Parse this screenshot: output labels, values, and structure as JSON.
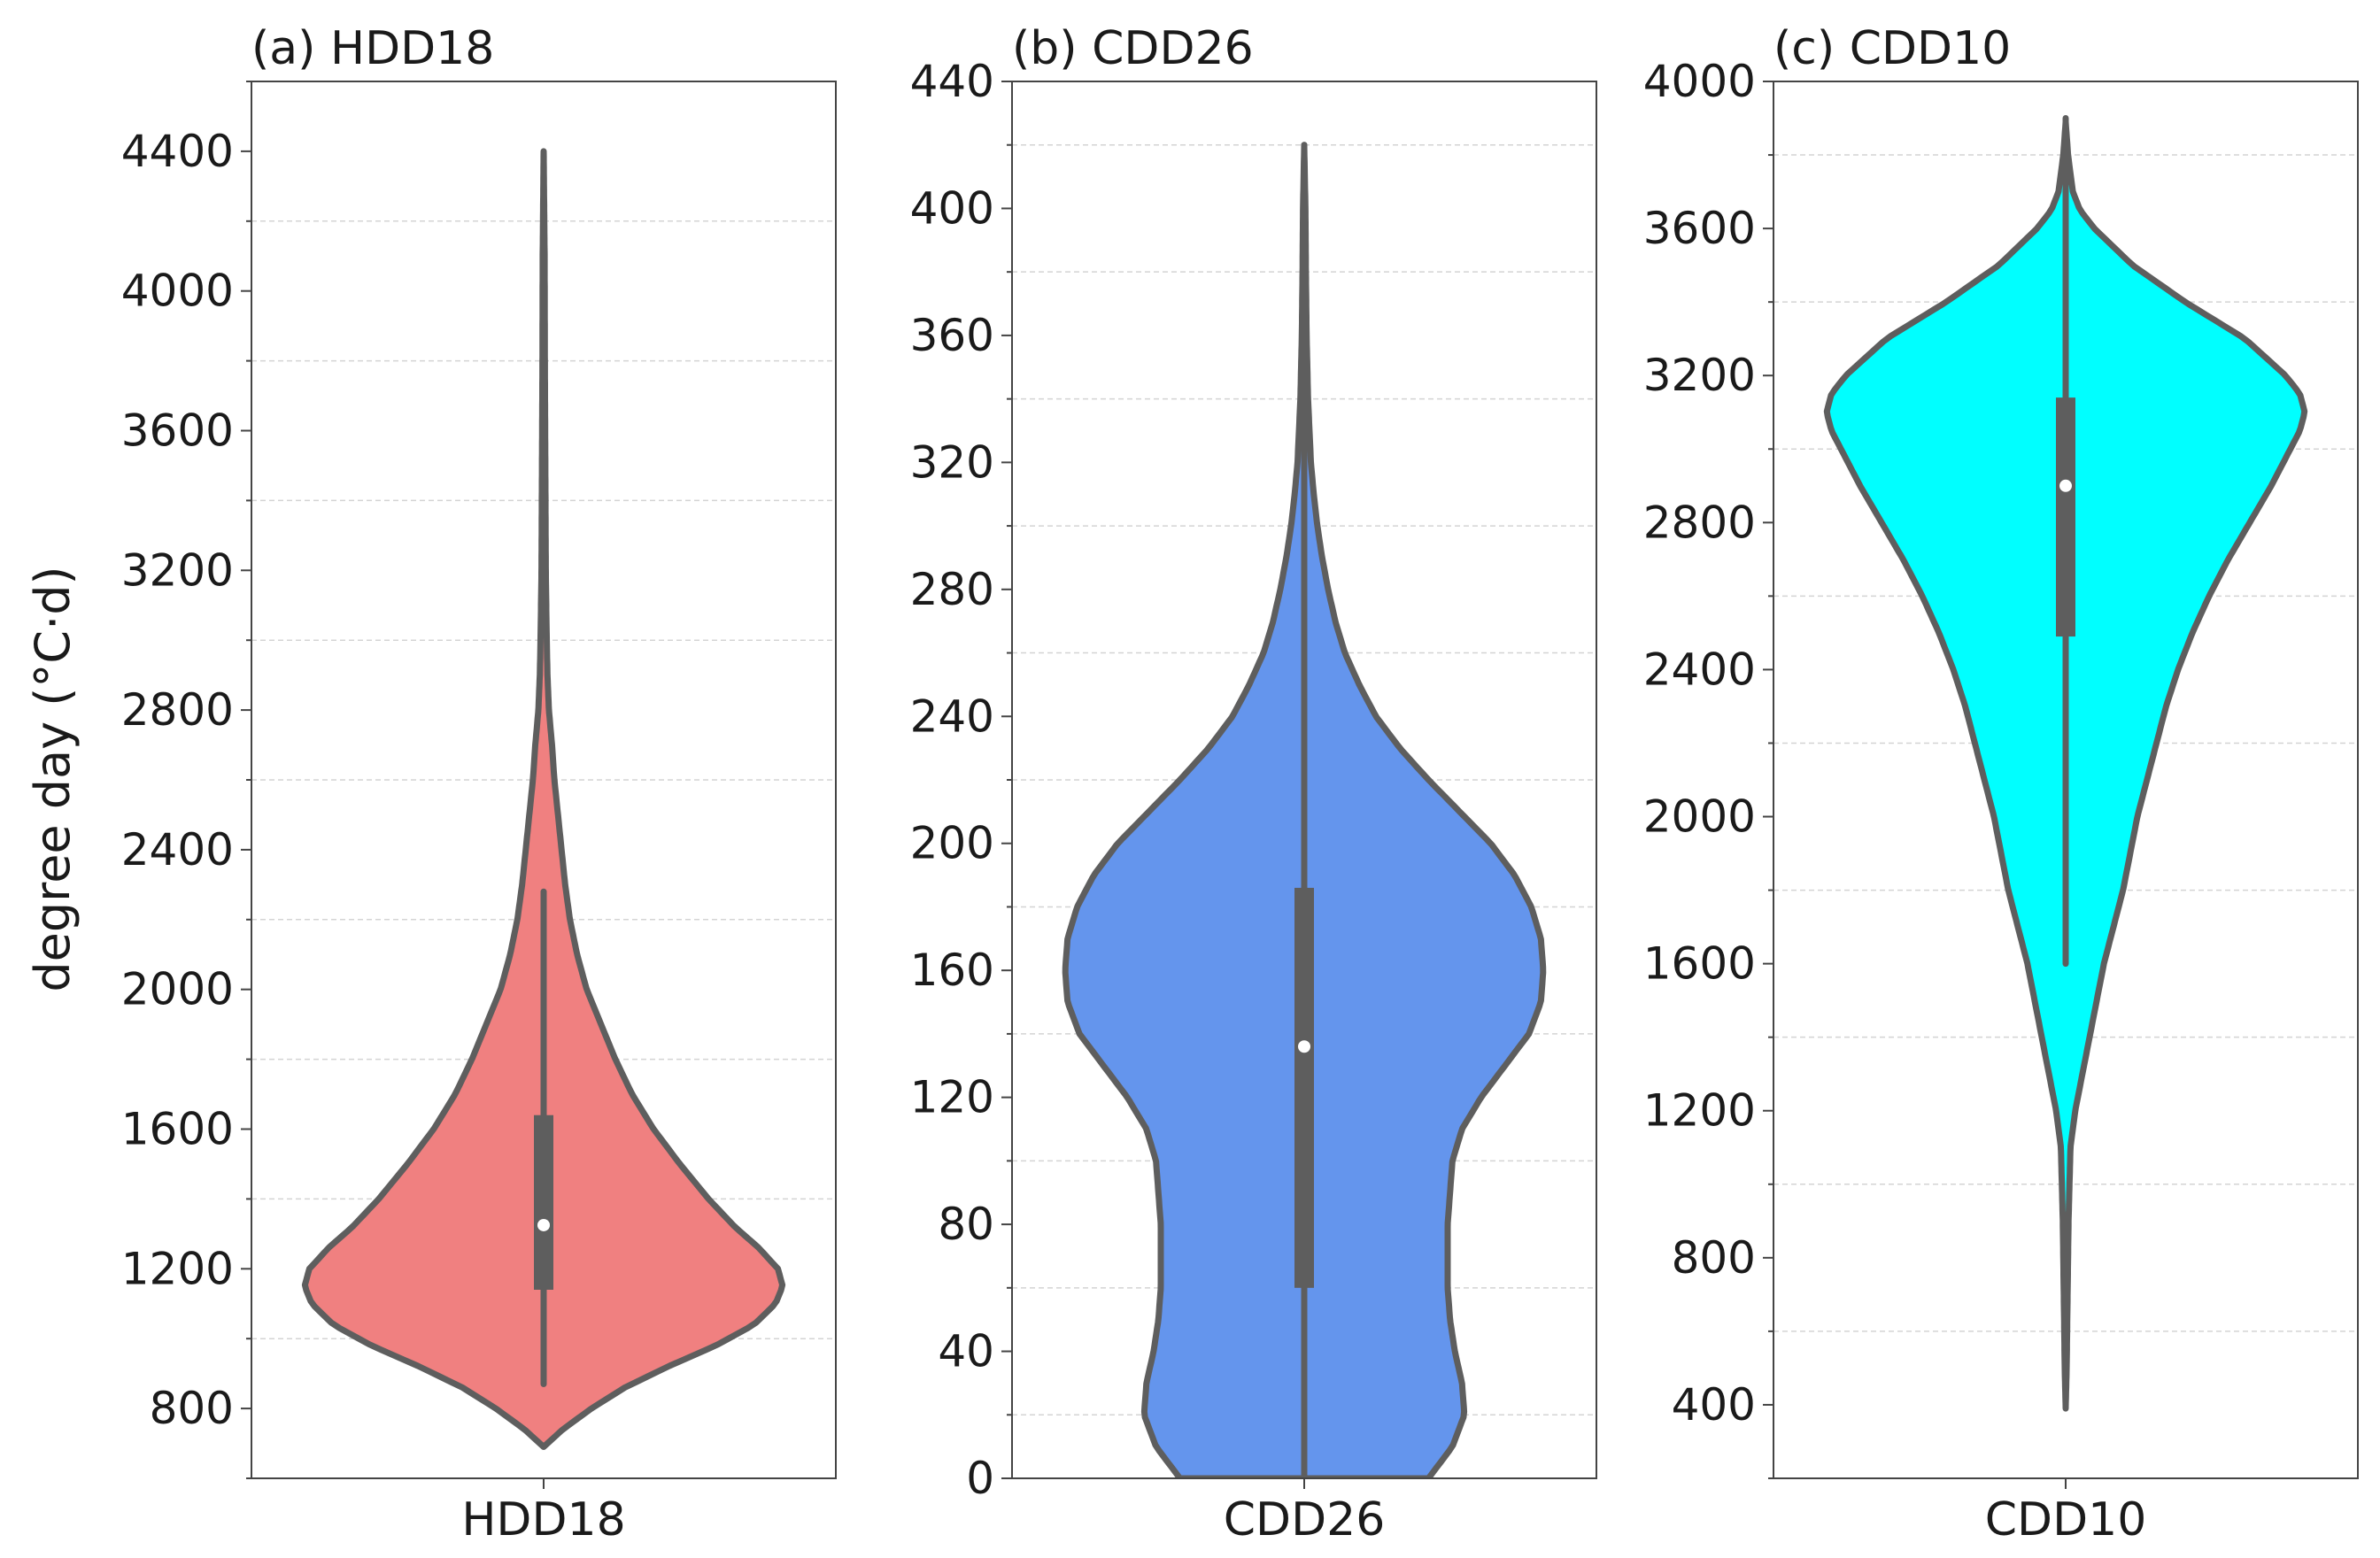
{
  "chart_data": [
    {
      "type": "violin",
      "title": "(a) HDD18",
      "ylabel": "degree day (°C·d)",
      "xlabel": "",
      "categories": [
        "HDD18"
      ],
      "ylim": [
        600,
        4600
      ],
      "yticks": [
        800,
        1200,
        1600,
        2000,
        2400,
        2800,
        3200,
        3600,
        4000,
        4400
      ],
      "minor_step": 200,
      "grid": "minor-dashed",
      "color": "#f08080",
      "stats": {
        "min": 870,
        "q1": 1140,
        "median": 1325,
        "q3": 1640,
        "max": 2280
      },
      "density_range": [
        690,
        4400
      ],
      "density": [
        [
          690,
          0.0
        ],
        [
          740,
          0.08
        ],
        [
          800,
          0.2
        ],
        [
          860,
          0.34
        ],
        [
          920,
          0.52
        ],
        [
          980,
          0.72
        ],
        [
          1040,
          0.88
        ],
        [
          1100,
          0.97
        ],
        [
          1150,
          1.0
        ],
        [
          1200,
          0.98
        ],
        [
          1260,
          0.9
        ],
        [
          1320,
          0.8
        ],
        [
          1400,
          0.69
        ],
        [
          1500,
          0.57
        ],
        [
          1600,
          0.46
        ],
        [
          1700,
          0.37
        ],
        [
          1800,
          0.3
        ],
        [
          1900,
          0.24
        ],
        [
          2000,
          0.18
        ],
        [
          2100,
          0.14
        ],
        [
          2200,
          0.11
        ],
        [
          2300,
          0.09
        ],
        [
          2400,
          0.075
        ],
        [
          2500,
          0.06
        ],
        [
          2600,
          0.045
        ],
        [
          2700,
          0.035
        ],
        [
          2800,
          0.022
        ],
        [
          2900,
          0.016
        ],
        [
          3000,
          0.013
        ],
        [
          3200,
          0.009
        ],
        [
          3500,
          0.007
        ],
        [
          3800,
          0.005
        ],
        [
          4100,
          0.004
        ],
        [
          4400,
          0.0
        ]
      ]
    },
    {
      "type": "violin",
      "title": "(b) CDD26",
      "xlabel": "",
      "categories": [
        "CDD26"
      ],
      "ylim": [
        0,
        440
      ],
      "yticks": [
        0,
        40,
        80,
        120,
        160,
        200,
        240,
        280,
        320,
        360,
        400,
        440
      ],
      "minor_step": 20,
      "grid": "minor-dashed",
      "color": "#6495ed",
      "stats": {
        "min": 0,
        "q1": 60,
        "median": 136,
        "q3": 186,
        "max": 420
      },
      "density_range": [
        0,
        420
      ],
      "density": [
        [
          0,
          0.52
        ],
        [
          10,
          0.62
        ],
        [
          20,
          0.67
        ],
        [
          30,
          0.66
        ],
        [
          40,
          0.63
        ],
        [
          50,
          0.61
        ],
        [
          60,
          0.6
        ],
        [
          80,
          0.6
        ],
        [
          100,
          0.62
        ],
        [
          110,
          0.66
        ],
        [
          120,
          0.74
        ],
        [
          130,
          0.84
        ],
        [
          140,
          0.94
        ],
        [
          150,
          0.99
        ],
        [
          160,
          1.0
        ],
        [
          170,
          0.99
        ],
        [
          180,
          0.95
        ],
        [
          190,
          0.88
        ],
        [
          200,
          0.78
        ],
        [
          210,
          0.65
        ],
        [
          220,
          0.52
        ],
        [
          230,
          0.4
        ],
        [
          240,
          0.3
        ],
        [
          250,
          0.23
        ],
        [
          260,
          0.17
        ],
        [
          270,
          0.13
        ],
        [
          280,
          0.1
        ],
        [
          290,
          0.075
        ],
        [
          300,
          0.055
        ],
        [
          310,
          0.04
        ],
        [
          320,
          0.028
        ],
        [
          340,
          0.016
        ],
        [
          360,
          0.01
        ],
        [
          380,
          0.007
        ],
        [
          400,
          0.005
        ],
        [
          420,
          0.0
        ]
      ]
    },
    {
      "type": "violin",
      "title": "(c) CDD10",
      "xlabel": "",
      "categories": [
        "CDD10"
      ],
      "ylim": [
        200,
        4000
      ],
      "yticks": [
        400,
        800,
        1200,
        1600,
        2000,
        2400,
        2800,
        3200,
        3600,
        4000
      ],
      "minor_step": 200,
      "grid": "minor-dashed",
      "color": "#00ffff",
      "stats": {
        "min": 1600,
        "q1": 2490,
        "median": 2900,
        "q3": 3140,
        "max": 3900
      },
      "density_range": [
        390,
        3890
      ],
      "density": [
        [
          390,
          0.0
        ],
        [
          500,
          0.004
        ],
        [
          700,
          0.008
        ],
        [
          900,
          0.012
        ],
        [
          1100,
          0.02
        ],
        [
          1200,
          0.04
        ],
        [
          1300,
          0.07
        ],
        [
          1400,
          0.1
        ],
        [
          1500,
          0.13
        ],
        [
          1600,
          0.16
        ],
        [
          1700,
          0.2
        ],
        [
          1800,
          0.24
        ],
        [
          1900,
          0.27
        ],
        [
          2000,
          0.3
        ],
        [
          2100,
          0.34
        ],
        [
          2200,
          0.38
        ],
        [
          2300,
          0.42
        ],
        [
          2400,
          0.47
        ],
        [
          2500,
          0.53
        ],
        [
          2600,
          0.6
        ],
        [
          2700,
          0.68
        ],
        [
          2800,
          0.77
        ],
        [
          2900,
          0.86
        ],
        [
          3000,
          0.94
        ],
        [
          3050,
          0.98
        ],
        [
          3100,
          1.0
        ],
        [
          3150,
          0.98
        ],
        [
          3200,
          0.92
        ],
        [
          3300,
          0.75
        ],
        [
          3400,
          0.5
        ],
        [
          3500,
          0.28
        ],
        [
          3600,
          0.12
        ],
        [
          3650,
          0.06
        ],
        [
          3700,
          0.03
        ],
        [
          3800,
          0.01
        ],
        [
          3890,
          0.0
        ]
      ]
    }
  ]
}
